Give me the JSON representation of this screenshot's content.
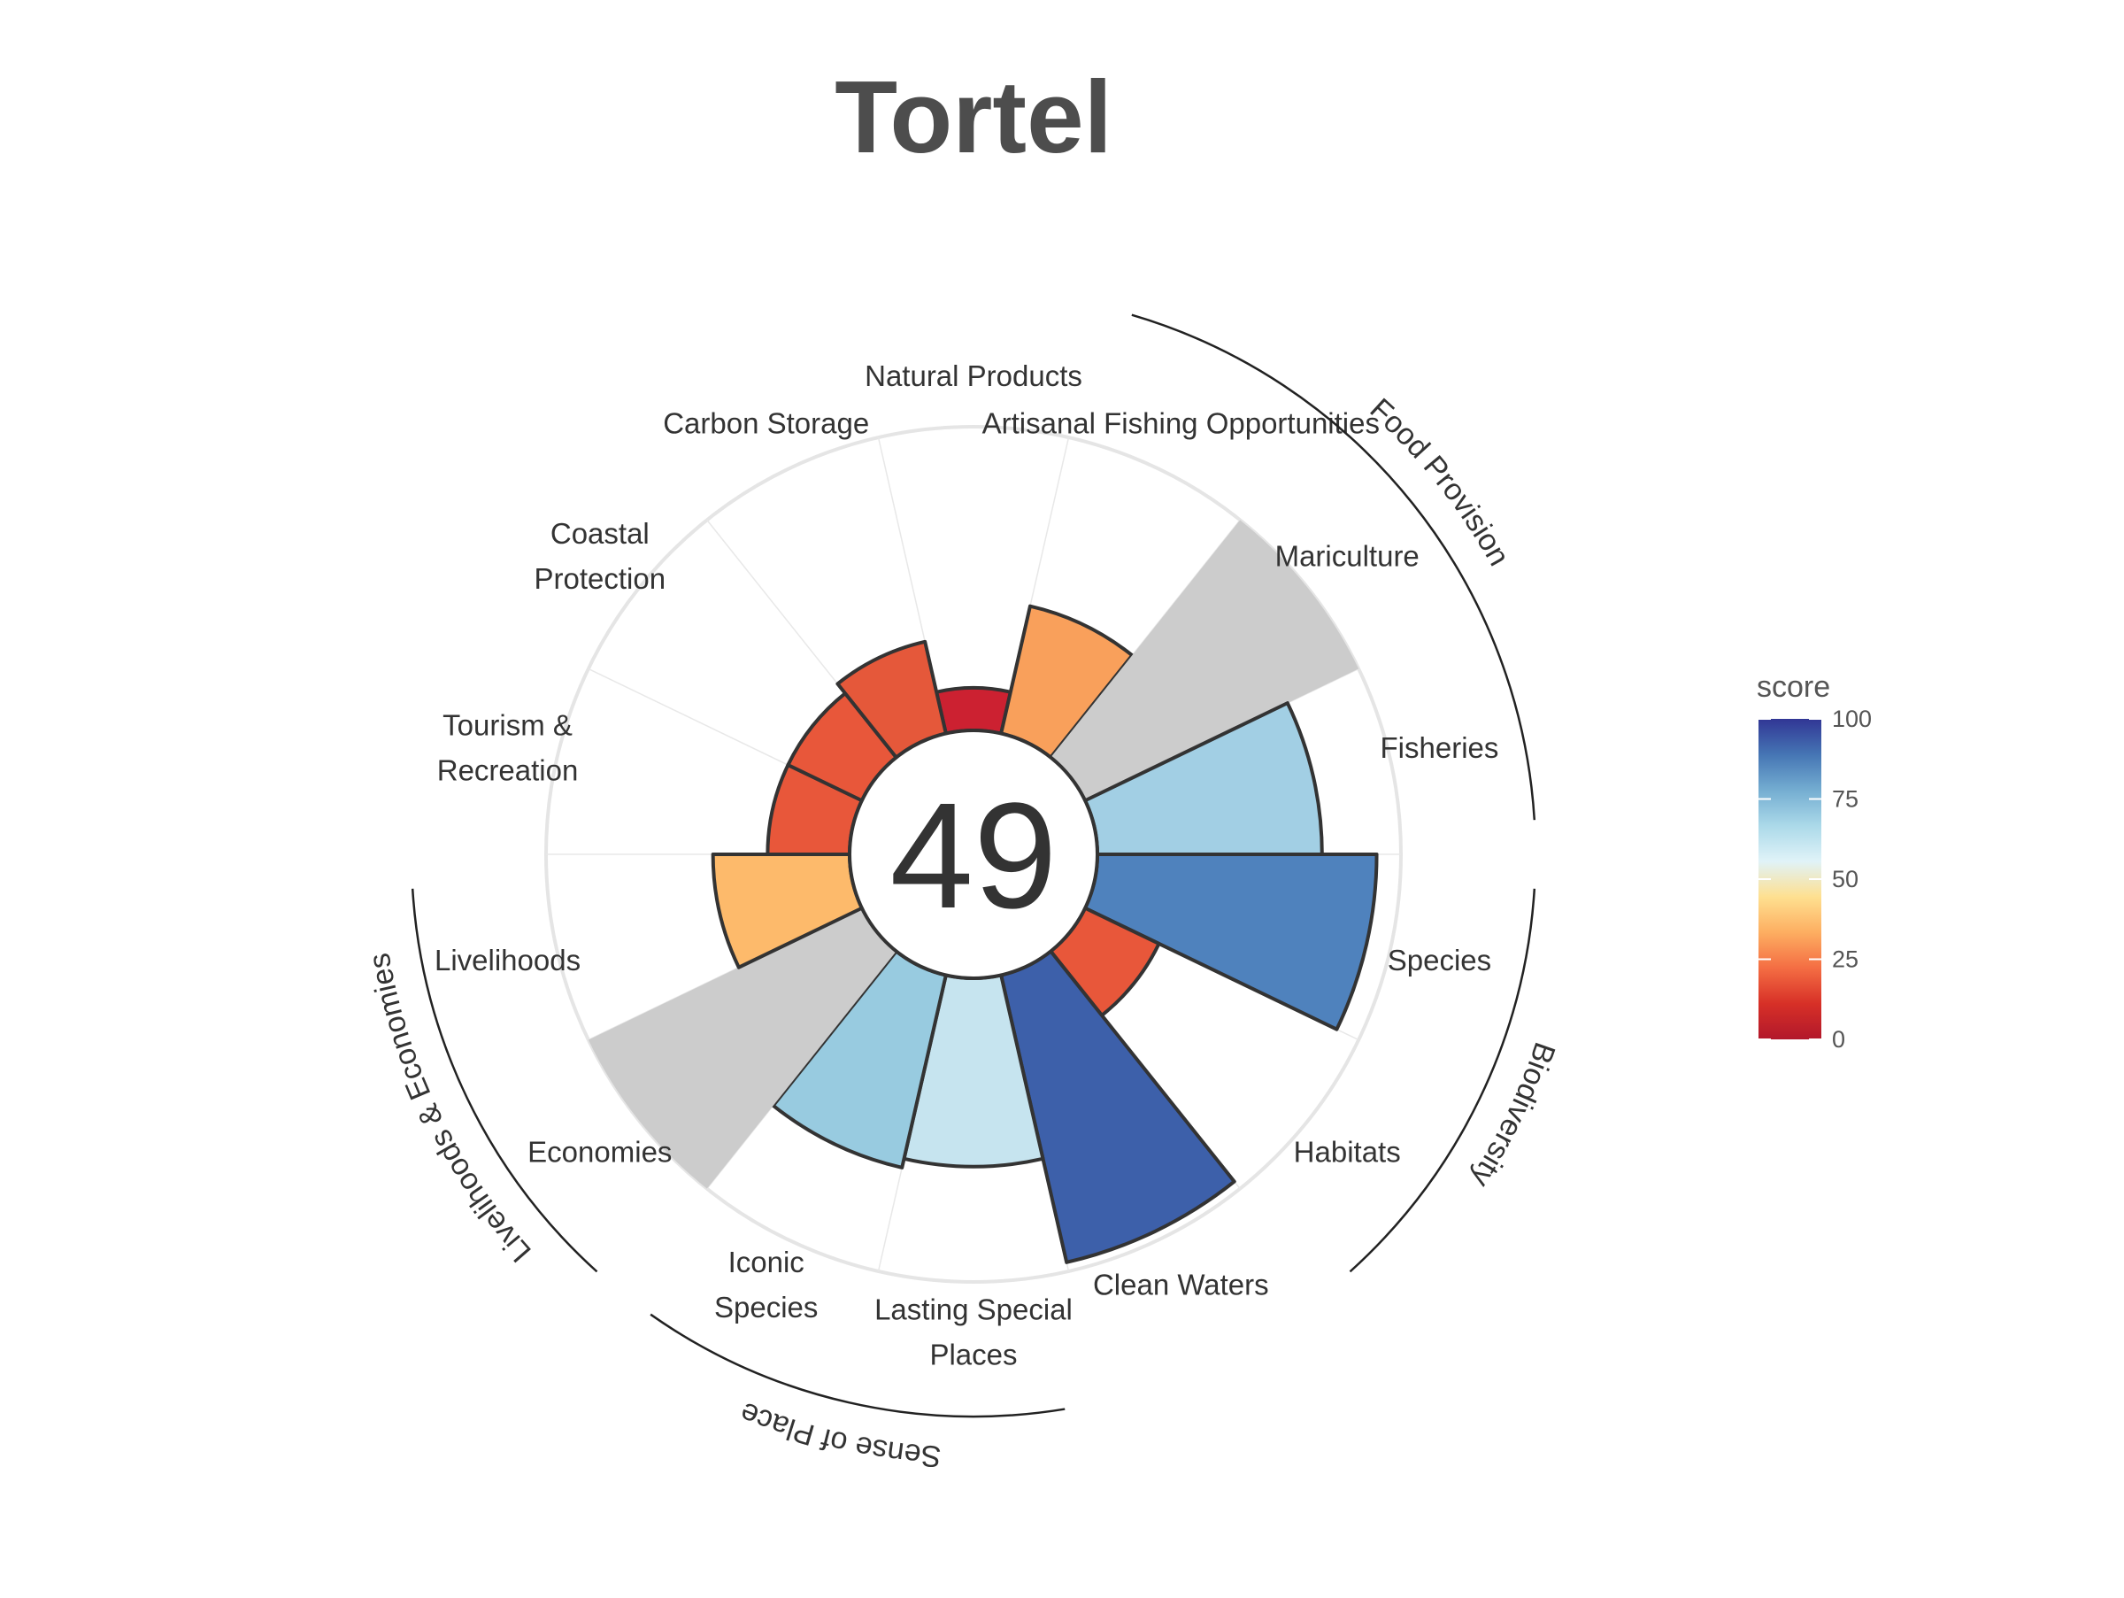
{
  "chart_data": {
    "type": "polar-bar",
    "title": "Tortel",
    "center_score": "49",
    "value_range": [
      0,
      100
    ],
    "segments": [
      {
        "label": "Natural Products",
        "lines": [
          "Natural Products"
        ],
        "value": 14,
        "color": "#cc2131"
      },
      {
        "label": "Artisanal Fishing Opportunities",
        "lines": [
          "Artisanal Fishing Opportunities"
        ],
        "value": 43,
        "color": "#f9a05b"
      },
      {
        "label": "Mariculture",
        "lines": [
          "Mariculture"
        ],
        "value": null,
        "color": "#cccccc"
      },
      {
        "label": "Fisheries",
        "lines": [
          "Fisheries"
        ],
        "value": 74,
        "color": "#a2cfe4"
      },
      {
        "label": "Species",
        "lines": [
          "Species"
        ],
        "value": 92,
        "color": "#4f82bd"
      },
      {
        "label": "Habitats",
        "lines": [
          "Habitats"
        ],
        "value": 27,
        "color": "#e8573a"
      },
      {
        "label": "Clean Waters",
        "lines": [
          "Clean Waters"
        ],
        "value": 97,
        "color": "#3d60aa"
      },
      {
        "label": "Lasting Special Places",
        "lines": [
          "Lasting Special",
          "Places"
        ],
        "value": 62,
        "color": "#c6e4ef"
      },
      {
        "label": "Iconic Species",
        "lines": [
          "Iconic",
          "Species"
        ],
        "value": 65,
        "color": "#98cbe0"
      },
      {
        "label": "Economies",
        "lines": [
          "Economies"
        ],
        "value": null,
        "color": "#cccccc"
      },
      {
        "label": "Livelihoods",
        "lines": [
          "Livelihoods"
        ],
        "value": 45,
        "color": "#fdba6b"
      },
      {
        "label": "Tourism & Recreation",
        "lines": [
          "Tourism &",
          "Recreation"
        ],
        "value": 27,
        "color": "#e8573a"
      },
      {
        "label": "Coastal Protection",
        "lines": [
          "Coastal",
          "Protection"
        ],
        "value": 27,
        "color": "#e8573a"
      },
      {
        "label": "Carbon Storage",
        "lines": [
          "Carbon Storage"
        ],
        "value": 31,
        "color": "#e5583a"
      }
    ],
    "groups": [
      {
        "label": "Food Provision",
        "segments": [
          "Artisanal Fishing Opportunities",
          "Mariculture",
          "Fisheries"
        ]
      },
      {
        "label": "Biodiversity",
        "segments": [
          "Species",
          "Habitats"
        ]
      },
      {
        "label": "Sense of Place",
        "segments": [
          "Lasting Special Places",
          "Iconic Species"
        ]
      },
      {
        "label": "Livelihoods & Economies",
        "segments": [
          "Economies",
          "Livelihoods"
        ]
      }
    ],
    "legend": {
      "title": "score",
      "ticks": [
        "0",
        "25",
        "50",
        "75",
        "100"
      ],
      "placement": "right",
      "colors": [
        "#b2182b",
        "#d73027",
        "#f46d43",
        "#fdae61",
        "#fee090",
        "#e0f3f8",
        "#abd9e9",
        "#74add1",
        "#4575b4",
        "#313695"
      ]
    }
  }
}
